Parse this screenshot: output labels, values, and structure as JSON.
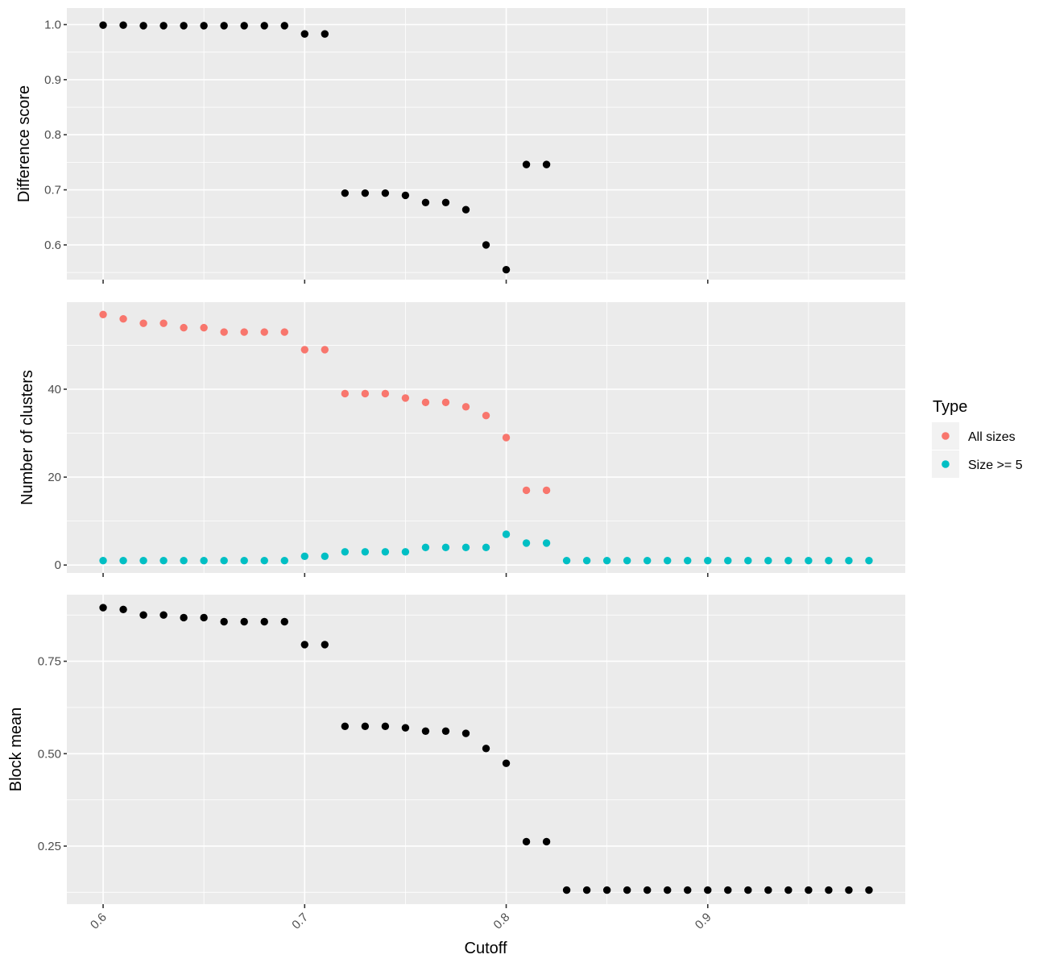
{
  "chart_data": {
    "type": "scatter",
    "xlabel": "Cutoff",
    "x_ticks": [
      "0.6",
      "0.7",
      "0.8",
      "0.9"
    ],
    "xlim": [
      0.582,
      0.998
    ],
    "grid": true,
    "legend": {
      "title": "Type",
      "placement": "right",
      "entries": [
        {
          "label": "All sizes",
          "color": "#F8766D"
        },
        {
          "label": "Size >= 5",
          "color": "#00BFC4"
        }
      ]
    },
    "panels": [
      {
        "ylabel": "Difference score",
        "ylim": [
          0.537,
          1.03
        ],
        "y_ticks": [
          "0.6",
          "0.7",
          "0.8",
          "0.9",
          "1.0"
        ],
        "y_tick_values": [
          0.6,
          0.7,
          0.8,
          0.9,
          1.0
        ],
        "series": [
          {
            "color": "#000000",
            "x": [
              0.6,
              0.61,
              0.62,
              0.63,
              0.64,
              0.65,
              0.66,
              0.67,
              0.68,
              0.69,
              0.7,
              0.71,
              0.72,
              0.73,
              0.74,
              0.75,
              0.76,
              0.77,
              0.78,
              0.79,
              0.8,
              0.81,
              0.82
            ],
            "y": [
              0.999,
              0.999,
              0.998,
              0.998,
              0.998,
              0.998,
              0.998,
              0.998,
              0.998,
              0.998,
              0.983,
              0.983,
              0.694,
              0.694,
              0.694,
              0.69,
              0.677,
              0.677,
              0.664,
              0.6,
              0.555,
              0.746,
              0.746
            ]
          }
        ]
      },
      {
        "ylabel": "Number of clusters",
        "ylim": [
          -1.8,
          59.8
        ],
        "y_ticks": [
          "0",
          "20",
          "40"
        ],
        "y_tick_values": [
          0,
          20,
          40
        ],
        "series": [
          {
            "name": "All sizes",
            "color": "#F8766D",
            "x": [
              0.6,
              0.61,
              0.62,
              0.63,
              0.64,
              0.65,
              0.66,
              0.67,
              0.68,
              0.69,
              0.7,
              0.71,
              0.72,
              0.73,
              0.74,
              0.75,
              0.76,
              0.77,
              0.78,
              0.79,
              0.8,
              0.81,
              0.82
            ],
            "y": [
              57,
              56,
              55,
              55,
              54,
              54,
              53,
              53,
              53,
              53,
              49,
              49,
              39,
              39,
              39,
              38,
              37,
              37,
              36,
              34,
              29,
              17,
              17
            ]
          },
          {
            "name": "Size >= 5",
            "color": "#00BFC4",
            "x": [
              0.6,
              0.61,
              0.62,
              0.63,
              0.64,
              0.65,
              0.66,
              0.67,
              0.68,
              0.69,
              0.7,
              0.71,
              0.72,
              0.73,
              0.74,
              0.75,
              0.76,
              0.77,
              0.78,
              0.79,
              0.8,
              0.81,
              0.82,
              0.83,
              0.84,
              0.85,
              0.86,
              0.87,
              0.88,
              0.89,
              0.9,
              0.91,
              0.92,
              0.93,
              0.94,
              0.95,
              0.96,
              0.97,
              0.98
            ],
            "y": [
              1,
              1,
              1,
              1,
              1,
              1,
              1,
              1,
              1,
              1,
              2,
              2,
              3,
              3,
              3,
              3,
              4,
              4,
              4,
              4,
              7,
              5,
              5,
              1,
              1,
              1,
              1,
              1,
              1,
              1,
              1,
              1,
              1,
              1,
              1,
              1,
              1,
              1,
              1
            ]
          }
        ]
      },
      {
        "ylabel": "Block mean",
        "ylim": [
          0.093,
          0.93
        ],
        "y_ticks": [
          "0.25",
          "0.50",
          "0.75"
        ],
        "y_tick_values": [
          0.25,
          0.5,
          0.75
        ],
        "series": [
          {
            "color": "#000000",
            "x": [
              0.6,
              0.61,
              0.62,
              0.63,
              0.64,
              0.65,
              0.66,
              0.67,
              0.68,
              0.69,
              0.7,
              0.71,
              0.72,
              0.73,
              0.74,
              0.75,
              0.76,
              0.77,
              0.78,
              0.79,
              0.8,
              0.81,
              0.82,
              0.83,
              0.84,
              0.85,
              0.86,
              0.87,
              0.88,
              0.89,
              0.9,
              0.91,
              0.92,
              0.93,
              0.94,
              0.95,
              0.96,
              0.97,
              0.98
            ],
            "y": [
              0.895,
              0.89,
              0.875,
              0.875,
              0.868,
              0.868,
              0.857,
              0.857,
              0.857,
              0.857,
              0.795,
              0.795,
              0.574,
              0.574,
              0.574,
              0.57,
              0.561,
              0.561,
              0.555,
              0.514,
              0.474,
              0.262,
              0.262,
              0.131,
              0.131,
              0.131,
              0.131,
              0.131,
              0.131,
              0.131,
              0.131,
              0.131,
              0.131,
              0.131,
              0.131,
              0.131,
              0.131,
              0.131,
              0.131
            ]
          }
        ]
      }
    ]
  }
}
